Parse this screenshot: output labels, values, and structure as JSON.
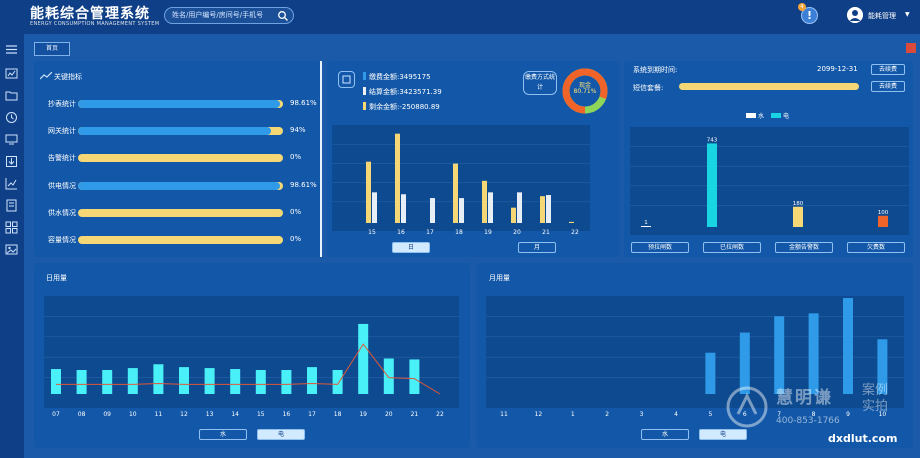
{
  "app": {
    "title": "能耗综合管理系统",
    "subtitle": "ENERGY CONSUMPTION MANAGEMENT SYSTEM",
    "search_placeholder": "姓名/用户编号/房间号/手机号",
    "alert_count": "4",
    "user_name": "能耗管理"
  },
  "sidebar": {
    "icons": [
      "menu-icon",
      "chart-board-icon",
      "folder-icon",
      "refresh-icon",
      "monitor-icon",
      "download-icon",
      "line-chart-icon",
      "report-icon",
      "grid-icon",
      "image-icon"
    ]
  },
  "tabs": {
    "home": "首页"
  },
  "indicators": {
    "title": "关键指标",
    "items": [
      {
        "label": "抄表统计",
        "value": "98.61%",
        "fraction": 0.9861
      },
      {
        "label": "网关统计",
        "value": "94%",
        "fraction": 0.94
      },
      {
        "label": "告警统计",
        "value": "0%",
        "fraction": 0
      },
      {
        "label": "供电情况",
        "value": "98.61%",
        "fraction": 0.9861
      },
      {
        "label": "供水情况",
        "value": "0%",
        "fraction": 0
      },
      {
        "label": "容量情况",
        "value": "0%",
        "fraction": 0
      }
    ]
  },
  "finance": {
    "items": [
      {
        "label": "缴费金额:3495175",
        "color": "#2e9ae8"
      },
      {
        "label": "结算金额:3423571.39",
        "color": "#f0f0f0"
      },
      {
        "label": "剩余金额:-250880.89",
        "color": "#f5d776"
      }
    ],
    "stat_button": "缴费方式统计",
    "donut": {
      "label": "现金",
      "percent_text": "80.71%",
      "fraction": 0.8071,
      "main_color": "#f0642a",
      "rest_color": "#8ed65a"
    },
    "buttons": [
      "日",
      "月"
    ]
  },
  "system": {
    "expire_label": "系统到期时间:",
    "expire_date": "2099-12-31",
    "renew_button": "去续费",
    "sms_label": "短信套餐:",
    "sms_button": "去续费",
    "legend": [
      "水",
      "电"
    ],
    "buttons": [
      "预拉闸数",
      "已拉闸数",
      "金额告警数",
      "欠费数"
    ]
  },
  "daily": {
    "title": "日用量",
    "buttons": [
      "水",
      "电"
    ]
  },
  "monthly": {
    "title": "月用量",
    "buttons": [
      "水",
      "电"
    ]
  },
  "watermark": {
    "brand": "慧明谦",
    "tag1": "案例",
    "tag2": "实拍",
    "phone": "400-853-1766",
    "site": "dxdlut.com"
  },
  "chart_data": [
    {
      "id": "finance-bars",
      "type": "bar",
      "categories": [
        "15",
        "16",
        "17",
        "18",
        "19",
        "20",
        "21",
        "22"
      ],
      "series": [
        {
          "name": "缴费金额",
          "color": "#f5d776",
          "values": [
            160,
            233,
            0,
            155,
            110,
            40,
            70,
            3
          ]
        },
        {
          "name": "结算金额",
          "color": "#e8eef5",
          "values": [
            80,
            75,
            65,
            65,
            80,
            80,
            73,
            0
          ]
        }
      ],
      "ylim": [
        0,
        240
      ]
    },
    {
      "id": "alarm-bars",
      "type": "bar",
      "categories": [
        "预拉闸数",
        "已拉闸数",
        "金额告警数",
        "欠费数"
      ],
      "series": [
        {
          "name": "数量",
          "colors": [
            "#ffffff",
            "#19d4e2",
            "#f5d776",
            "#f0642a"
          ],
          "values": [
            1,
            743,
            180,
            100
          ]
        }
      ],
      "data_labels": [
        "1",
        "743",
        "180",
        "100"
      ],
      "ylim": [
        0,
        800
      ]
    },
    {
      "id": "daily-usage",
      "type": "bar",
      "categories": [
        "07",
        "08",
        "09",
        "10",
        "11",
        "12",
        "13",
        "14",
        "15",
        "16",
        "17",
        "18",
        "19",
        "20",
        "21",
        "22"
      ],
      "series": [
        {
          "name": "电",
          "color": "#4af0f7",
          "values": [
            26,
            25,
            25,
            27,
            31,
            28,
            27,
            26,
            25,
            25,
            28,
            25,
            73,
            37,
            36,
            0
          ]
        }
      ],
      "line": [
        10,
        10,
        10,
        10,
        11,
        10,
        10,
        10,
        10,
        10,
        11,
        10,
        52,
        17,
        16,
        0
      ],
      "ylim": [
        0,
        100
      ]
    },
    {
      "id": "monthly-usage",
      "type": "bar",
      "categories": [
        "11",
        "12",
        "1",
        "2",
        "3",
        "4",
        "5",
        "6",
        "7",
        "8",
        "9",
        "10"
      ],
      "series": [
        {
          "name": "电",
          "color": "#2e9ae8",
          "values": [
            0,
            0,
            0,
            0,
            0,
            0,
            43,
            64,
            81,
            84,
            100,
            57
          ]
        }
      ],
      "ylim": [
        0,
        100
      ]
    }
  ]
}
